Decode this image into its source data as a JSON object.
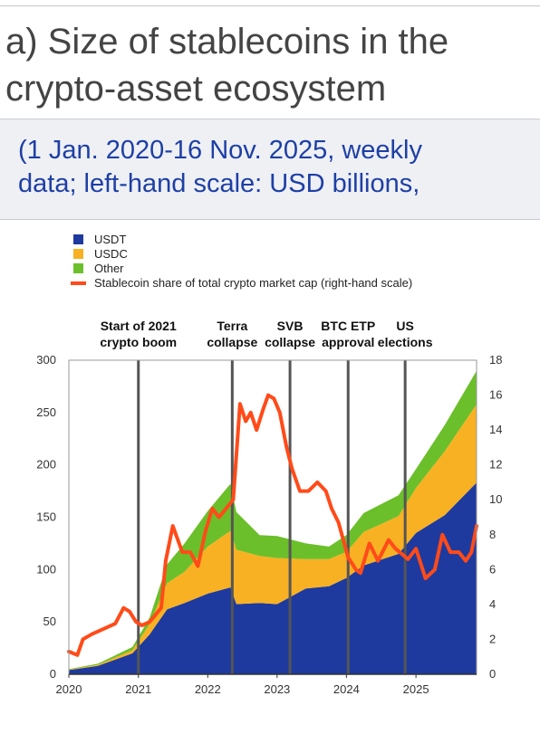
{
  "header": {
    "title": "a) Size of stablecoins in the crypto-asset ecosystem",
    "subtitle_line1": "(1 Jan. 2020-16 Nov. 2025, weekly",
    "subtitle_line2": "data; left-hand scale: USD billions,"
  },
  "chart_data": {
    "type": "area",
    "x_range": [
      "2020-01-01",
      "2025-11-16"
    ],
    "x_tick_labels": [
      "2020",
      "2021",
      "2022",
      "2023",
      "2024",
      "2025"
    ],
    "ylim_left": [
      0,
      300
    ],
    "ylim_right": [
      0,
      18
    ],
    "y_ticks_left": [
      "0",
      "50",
      "100",
      "150",
      "200",
      "250",
      "300"
    ],
    "y_ticks_right": [
      "0",
      "2",
      "4",
      "6",
      "8",
      "10",
      "12",
      "14",
      "16",
      "18"
    ],
    "stacked": true,
    "colors": {
      "USDT": "#1e3a9e",
      "USDC": "#f8b123",
      "Other": "#6bbf2a",
      "Share": "#ff4b19",
      "event_line": "#555555"
    },
    "legend": [
      {
        "name": "USDT",
        "color": "#1e3a9e",
        "marker": "square"
      },
      {
        "name": "USDC",
        "color": "#f8b123",
        "marker": "square"
      },
      {
        "name": "Other",
        "color": "#6bbf2a",
        "marker": "square"
      },
      {
        "name": "Stablecoin share of total crypto market cap (right-hand scale)",
        "color": "#ff4b19",
        "marker": "line"
      }
    ],
    "series": [
      {
        "name": "USDT",
        "axis": "left",
        "x": [
          "2020-01-01",
          "2020-06-01",
          "2020-12-01",
          "2021-03-01",
          "2021-06-01",
          "2021-09-01",
          "2022-01-01",
          "2022-05-01",
          "2022-06-01",
          "2022-10-01",
          "2023-01-01",
          "2023-06-01",
          "2023-10-01",
          "2024-01-01",
          "2024-04-01",
          "2024-10-01",
          "2025-01-01",
          "2025-06-01",
          "2025-11-16"
        ],
        "values": [
          4,
          8,
          20,
          38,
          62,
          68,
          77,
          83,
          67,
          68,
          67,
          82,
          84,
          92,
          104,
          115,
          135,
          152,
          183
        ]
      },
      {
        "name": "USDC",
        "axis": "left",
        "x": [
          "2020-01-01",
          "2020-06-01",
          "2020-12-01",
          "2021-03-01",
          "2021-06-01",
          "2021-09-01",
          "2022-01-01",
          "2022-05-01",
          "2022-06-01",
          "2022-10-01",
          "2023-01-01",
          "2023-06-01",
          "2023-10-01",
          "2024-01-01",
          "2024-04-01",
          "2024-10-01",
          "2025-01-01",
          "2025-06-01",
          "2025-11-16"
        ],
        "values": [
          0.5,
          1,
          3,
          10,
          25,
          30,
          45,
          54,
          52,
          45,
          44,
          28,
          26,
          25,
          32,
          36,
          43,
          61,
          75
        ]
      },
      {
        "name": "Other",
        "axis": "left",
        "x": [
          "2020-01-01",
          "2020-06-01",
          "2020-12-01",
          "2021-03-01",
          "2021-06-01",
          "2021-09-01",
          "2022-01-01",
          "2022-05-01",
          "2022-06-01",
          "2022-10-01",
          "2023-01-01",
          "2023-06-01",
          "2023-10-01",
          "2024-01-01",
          "2024-04-01",
          "2024-10-01",
          "2025-01-01",
          "2025-06-01",
          "2025-11-16"
        ],
        "values": [
          0.5,
          1,
          3,
          6,
          18,
          27,
          34,
          45,
          36,
          20,
          21,
          15,
          12,
          16,
          18,
          20,
          18,
          25,
          32
        ]
      },
      {
        "name": "Stablecoin share of total crypto market cap (right-hand scale)",
        "axis": "right",
        "x": [
          "2020-01-01",
          "2020-02-15",
          "2020-03-15",
          "2020-05-01",
          "2020-07-01",
          "2020-09-01",
          "2020-10-15",
          "2020-11-15",
          "2020-12-20",
          "2021-01-20",
          "2021-03-01",
          "2021-05-01",
          "2021-05-25",
          "2021-07-01",
          "2021-08-20",
          "2021-10-01",
          "2021-11-10",
          "2021-12-20",
          "2022-01-25",
          "2022-03-01",
          "2022-05-15",
          "2022-06-20",
          "2022-07-20",
          "2022-08-15",
          "2022-09-15",
          "2022-10-20",
          "2022-11-15",
          "2022-12-15",
          "2023-01-15",
          "2023-02-20",
          "2023-03-20",
          "2023-05-01",
          "2023-06-15",
          "2023-08-01",
          "2023-09-15",
          "2023-10-15",
          "2023-11-20",
          "2024-01-10",
          "2024-02-20",
          "2024-03-15",
          "2024-05-01",
          "2024-06-15",
          "2024-08-10",
          "2024-09-15",
          "2024-11-20",
          "2025-01-01",
          "2025-02-20",
          "2025-04-10",
          "2025-05-20",
          "2025-07-01",
          "2025-08-15",
          "2025-09-20",
          "2025-10-20",
          "2025-11-16"
        ],
        "values": [
          1.3,
          1.1,
          2.0,
          2.3,
          2.6,
          2.9,
          3.8,
          3.6,
          3.0,
          2.8,
          3.0,
          3.8,
          6.5,
          8.5,
          7.0,
          7.0,
          6.2,
          8.2,
          9.5,
          9.0,
          10.0,
          15.5,
          14.5,
          15.0,
          14.0,
          15.2,
          16.0,
          15.8,
          15.0,
          13.0,
          11.8,
          10.5,
          10.5,
          11.0,
          10.5,
          9.5,
          8.7,
          6.7,
          6.0,
          5.8,
          7.5,
          6.5,
          7.7,
          7.2,
          6.6,
          7.2,
          5.5,
          6.0,
          8.0,
          7.0,
          7.0,
          6.5,
          7.0,
          8.5
        ]
      }
    ],
    "events": [
      {
        "date": "2021-01-01",
        "label_line1": "Start of 2021",
        "label_line2": "crypto boom"
      },
      {
        "date": "2022-05-10",
        "label_line1": "Terra",
        "label_line2": "collapse"
      },
      {
        "date": "2023-03-10",
        "label_line1": "SVB",
        "label_line2": "collapse"
      },
      {
        "date": "2024-01-10",
        "label_line1": "BTC ETP",
        "label_line2": "approval"
      },
      {
        "date": "2024-11-05",
        "label_line1": "US",
        "label_line2": "elections"
      }
    ]
  }
}
